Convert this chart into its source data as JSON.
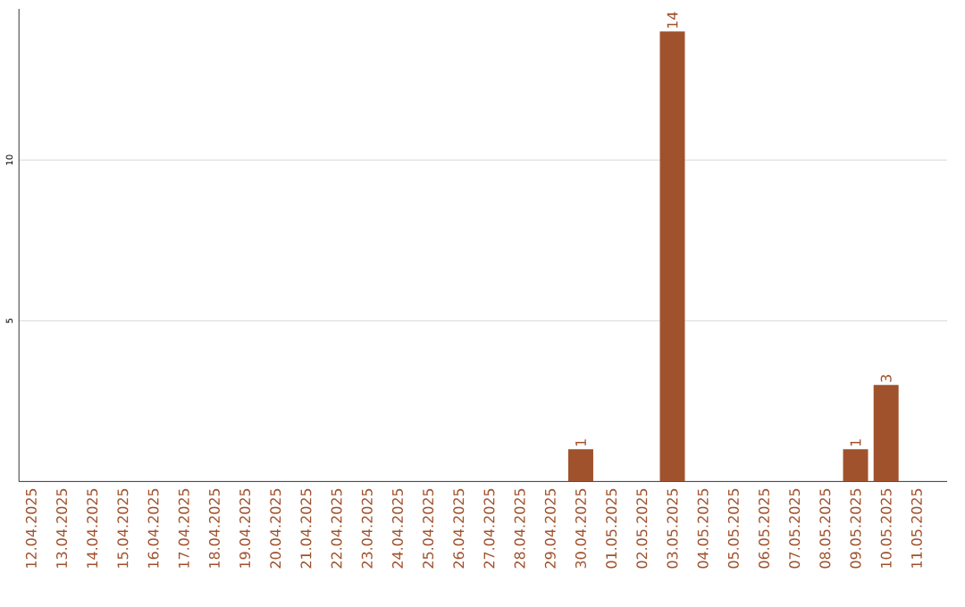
{
  "chart_data": {
    "type": "bar",
    "categories": [
      "12.04.2025",
      "13.04.2025",
      "14.04.2025",
      "15.04.2025",
      "16.04.2025",
      "17.04.2025",
      "18.04.2025",
      "19.04.2025",
      "20.04.2025",
      "21.04.2025",
      "22.04.2025",
      "23.04.2025",
      "24.04.2025",
      "25.04.2025",
      "26.04.2025",
      "27.04.2025",
      "28.04.2025",
      "29.04.2025",
      "30.04.2025",
      "01.05.2025",
      "02.05.2025",
      "03.05.2025",
      "04.05.2025",
      "05.05.2025",
      "06.05.2025",
      "07.05.2025",
      "08.05.2025",
      "09.05.2025",
      "10.05.2025",
      "11.05.2025"
    ],
    "values": [
      0,
      0,
      0,
      0,
      0,
      0,
      0,
      0,
      0,
      0,
      0,
      0,
      0,
      0,
      0,
      0,
      0,
      0,
      1,
      0,
      0,
      14,
      0,
      0,
      0,
      0,
      0,
      1,
      3,
      0
    ],
    "value_labels": [
      null,
      null,
      null,
      null,
      null,
      null,
      null,
      null,
      null,
      null,
      null,
      null,
      null,
      null,
      null,
      null,
      null,
      null,
      "1",
      null,
      null,
      "14",
      null,
      null,
      null,
      null,
      null,
      "1",
      "3",
      null
    ],
    "color": "#a0522d",
    "ylim": [
      0,
      14.7
    ],
    "yticks": [
      5,
      10
    ],
    "grid": "y"
  }
}
